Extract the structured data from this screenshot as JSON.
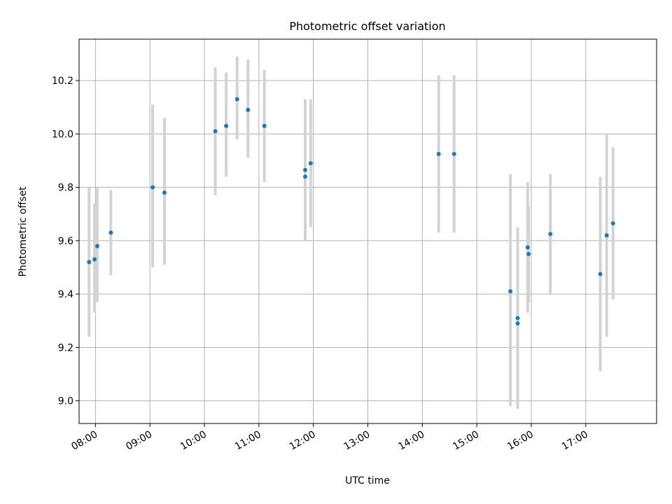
{
  "chart_data": {
    "type": "scatter",
    "title": "Photometric offset variation",
    "xlabel": "UTC time",
    "ylabel": "Photometric offset",
    "xlim": [
      "07:42",
      "18:18"
    ],
    "ylim": [
      8.915,
      10.355
    ],
    "grid": true,
    "colors": {
      "point": "#1f77b4",
      "errorbar": "#d3d3d3",
      "grid": "#b0b0b0",
      "axes": "#000000"
    },
    "x_ticks": [
      "08:00",
      "09:00",
      "10:00",
      "11:00",
      "12:00",
      "13:00",
      "14:00",
      "15:00",
      "16:00",
      "17:00"
    ],
    "y_ticks": [
      "9.0",
      "9.2",
      "9.4",
      "9.6",
      "9.8",
      "10.0",
      "10.2"
    ],
    "points": [
      {
        "t": "07:53",
        "y": 9.52,
        "low": 9.24,
        "high": 9.8
      },
      {
        "t": "07:59",
        "y": 9.53,
        "low": 9.33,
        "high": 9.74
      },
      {
        "t": "08:02",
        "y": 9.58,
        "low": 9.37,
        "high": 9.8
      },
      {
        "t": "08:17",
        "y": 9.63,
        "low": 9.47,
        "high": 9.79
      },
      {
        "t": "09:03",
        "y": 9.8,
        "low": 9.5,
        "high": 10.11
      },
      {
        "t": "09:16",
        "y": 9.78,
        "low": 9.51,
        "high": 10.06
      },
      {
        "t": "10:12",
        "y": 10.01,
        "low": 9.77,
        "high": 10.25
      },
      {
        "t": "10:24",
        "y": 10.03,
        "low": 9.84,
        "high": 10.23
      },
      {
        "t": "10:36",
        "y": 10.13,
        "low": 9.98,
        "high": 10.29
      },
      {
        "t": "10:48",
        "y": 10.09,
        "low": 9.91,
        "high": 10.28
      },
      {
        "t": "11:06",
        "y": 10.03,
        "low": 9.82,
        "high": 10.24
      },
      {
        "t": "11:51",
        "y": 9.865,
        "low": 9.6,
        "high": 10.13
      },
      {
        "t": "11:51",
        "y": 9.84,
        "low": 9.6,
        "high": 10.08
      },
      {
        "t": "11:57",
        "y": 9.89,
        "low": 9.65,
        "high": 10.13
      },
      {
        "t": "14:18",
        "y": 9.925,
        "low": 9.63,
        "high": 10.22
      },
      {
        "t": "14:35",
        "y": 9.925,
        "low": 9.63,
        "high": 10.22
      },
      {
        "t": "15:37",
        "y": 9.41,
        "low": 8.98,
        "high": 9.85
      },
      {
        "t": "15:45",
        "y": 9.31,
        "low": 8.97,
        "high": 9.65
      },
      {
        "t": "15:45",
        "y": 9.29,
        "low": 8.97,
        "high": 9.61
      },
      {
        "t": "15:56",
        "y": 9.575,
        "low": 9.33,
        "high": 9.82
      },
      {
        "t": "15:57",
        "y": 9.55,
        "low": 9.37,
        "high": 9.73
      },
      {
        "t": "16:21",
        "y": 9.625,
        "low": 9.4,
        "high": 9.85
      },
      {
        "t": "17:16",
        "y": 9.475,
        "low": 9.11,
        "high": 9.84
      },
      {
        "t": "17:23",
        "y": 9.62,
        "low": 9.24,
        "high": 10.0
      },
      {
        "t": "17:30",
        "y": 9.665,
        "low": 9.38,
        "high": 9.95
      }
    ]
  }
}
